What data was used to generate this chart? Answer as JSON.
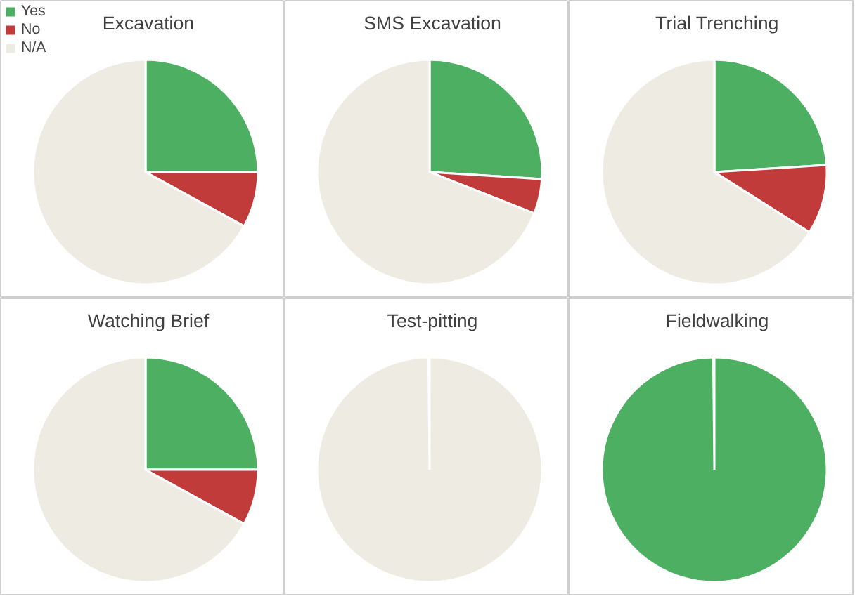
{
  "chart_data": [
    {
      "type": "pie",
      "title": "Excavation",
      "categories": [
        "Yes",
        "No",
        "N/A"
      ],
      "values": [
        25,
        8,
        67
      ],
      "colors": [
        "#4caf62",
        "#c23b3b",
        "#eeebe2"
      ],
      "legend": "top left"
    },
    {
      "type": "pie",
      "title": "SMS Excavation",
      "values": [
        26,
        5,
        69
      ],
      "colors": [
        "#4caf62",
        "#c23b3b",
        "#eeebe2"
      ]
    },
    {
      "type": "pie",
      "title": "Trial Trenching",
      "values": [
        24,
        10,
        66
      ],
      "colors": [
        "#4caf62",
        "#c23b3b",
        "#eeebe2"
      ]
    },
    {
      "type": "pie",
      "title": "Watching Brief",
      "values": [
        25,
        8,
        67
      ],
      "colors": [
        "#4caf62",
        "#c23b3b",
        "#eeebe2"
      ]
    },
    {
      "type": "pie",
      "title": "Test-pitting",
      "values": [
        0,
        0,
        100
      ],
      "colors": [
        "#4caf62",
        "#c23b3b",
        "#eeebe2"
      ]
    },
    {
      "type": "pie",
      "title": "Fieldwalking",
      "values": [
        100,
        0,
        0
      ],
      "colors": [
        "#4caf62",
        "#c23b3b",
        "#eeebe2"
      ]
    }
  ]
}
